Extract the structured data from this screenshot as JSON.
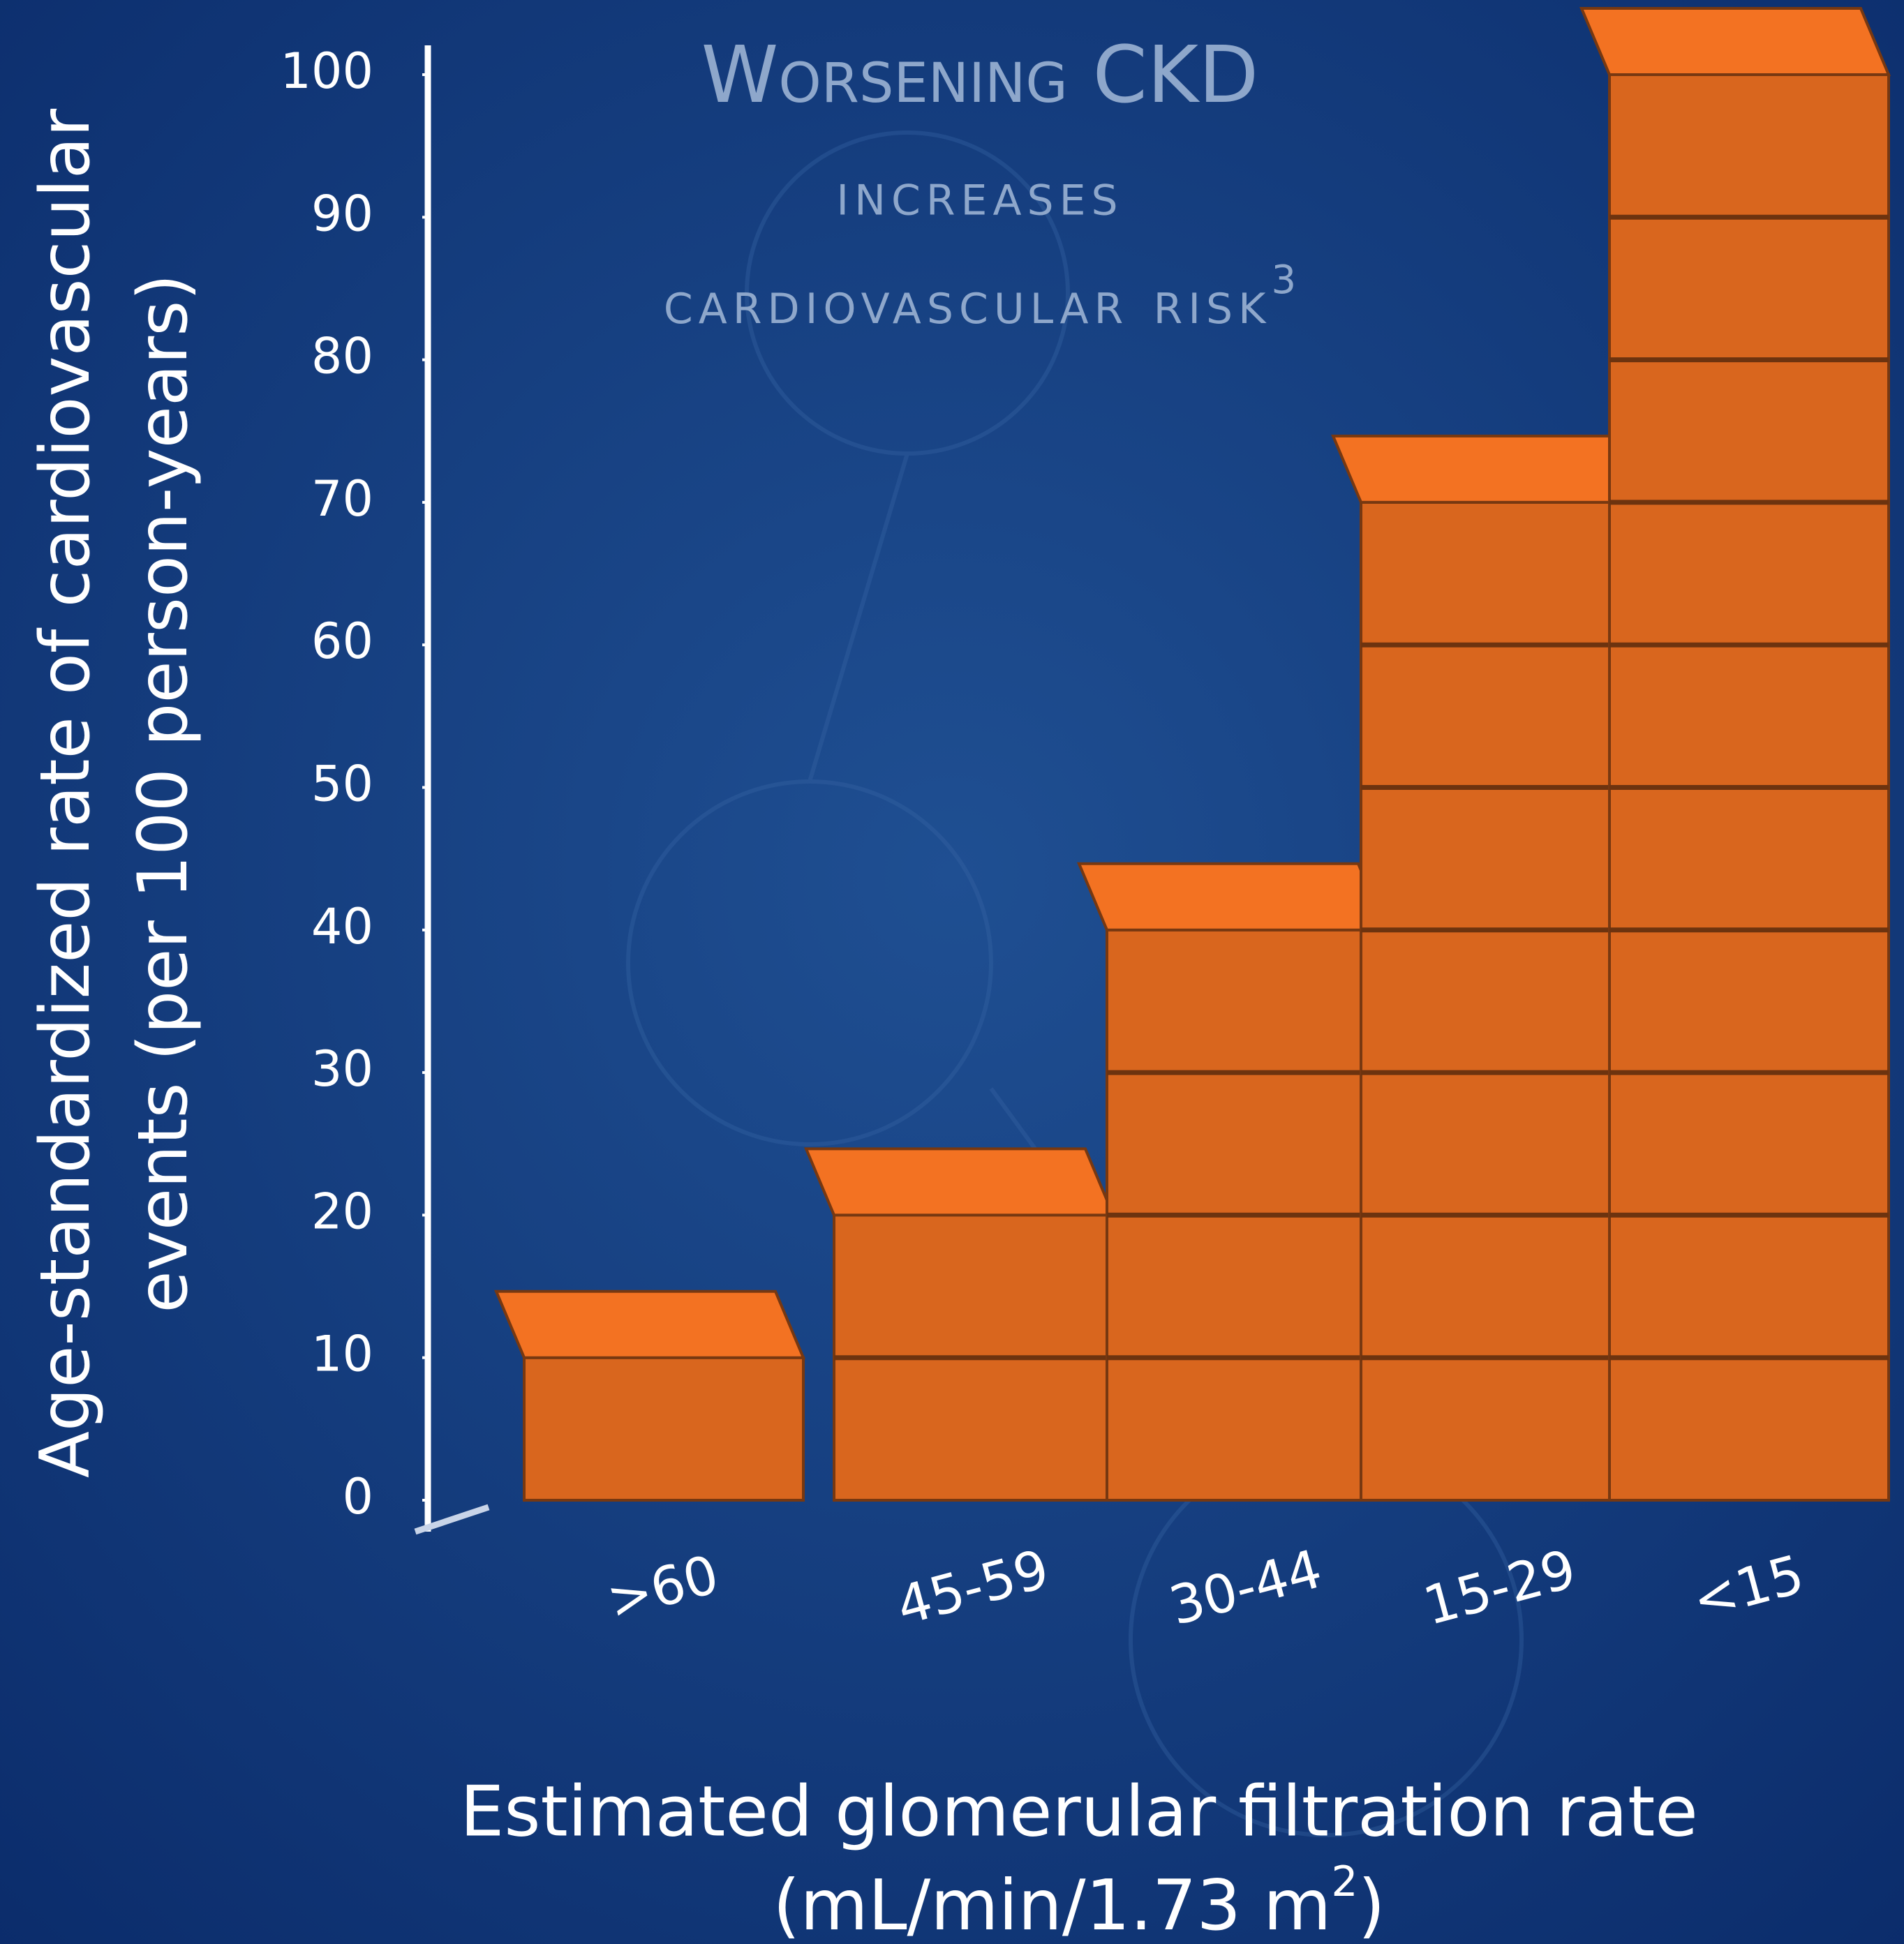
{
  "chart_data": {
    "type": "bar",
    "title_lines": [
      "Worsening CKD",
      "increases",
      "cardiovascular risk"
    ],
    "title_footnote": "3",
    "y_label_lines": [
      "Age-standardized rate of cardiovascular",
      "events (per 100 person-years)"
    ],
    "x_label": "Estimated glomerular filtration rate",
    "x_label_unit": [
      "(mL/min/1.73 m",
      "2",
      ")"
    ],
    "categories": [
      ">60",
      "45-59",
      "30-44",
      "15-29",
      "<15"
    ],
    "values": [
      10,
      20,
      40,
      70,
      100
    ],
    "color": "#d9661e",
    "ylim": [
      0,
      100
    ],
    "yticks": [
      0,
      10,
      20,
      30,
      40,
      50,
      60,
      70,
      80,
      90,
      100
    ]
  }
}
